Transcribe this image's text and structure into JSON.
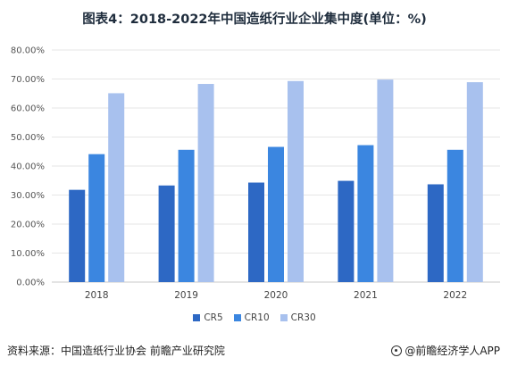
{
  "title": "图表4：2018-2022年中国造纸行业企业集中度(单位：%)",
  "chart_data": {
    "type": "bar",
    "categories": [
      "2018",
      "2019",
      "2020",
      "2021",
      "2022"
    ],
    "series": [
      {
        "name": "CR5",
        "values": [
          31.8,
          33.3,
          34.3,
          34.9,
          33.7
        ],
        "color": "#2d68c4"
      },
      {
        "name": "CR10",
        "values": [
          44.1,
          45.6,
          46.6,
          47.2,
          45.6
        ],
        "color": "#3b86e0"
      },
      {
        "name": "CR30",
        "values": [
          65.1,
          68.3,
          69.3,
          69.8,
          68.9
        ],
        "color": "#a8c1ee"
      }
    ],
    "ylim": [
      0,
      80
    ],
    "yticks": [
      "0.00%",
      "10.00%",
      "20.00%",
      "30.00%",
      "40.00%",
      "50.00%",
      "60.00%",
      "70.00%",
      "80.00%"
    ],
    "grid": true,
    "legend_position": "bottom"
  },
  "footer": {
    "source": "资料来源：中国造纸行业协会 前瞻产业研究院",
    "brand": "@前瞻经济学人APP"
  }
}
